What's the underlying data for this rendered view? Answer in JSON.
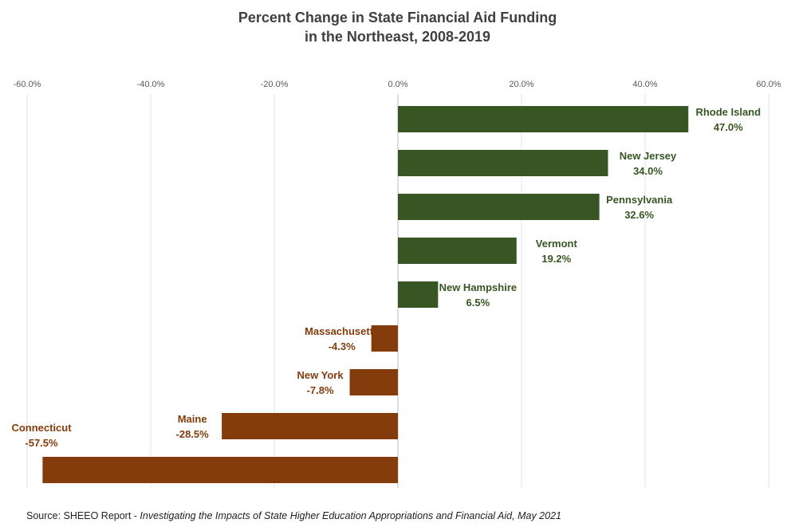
{
  "colors": {
    "positive": "#375623",
    "negative": "#843C0C",
    "grid": "#e6e6e6",
    "axis": "#bfbfbf"
  },
  "chart_data": {
    "type": "bar",
    "orientation": "horizontal",
    "title": "Percent Change in State Financial Aid Funding",
    "subtitle": "in the Northeast, 2008-2019",
    "xlim": [
      -60,
      60
    ],
    "x_ticks": [
      "-60.0%",
      "-40.0%",
      "-20.0%",
      "0.0%",
      "20.0%",
      "40.0%",
      "60.0%"
    ],
    "axis_position": "top",
    "grid": true,
    "categories": [
      "Rhode Island",
      "New Jersey",
      "Pennsylvania",
      "Vermont",
      "New Hampshire",
      "Massachusetts",
      "New York",
      "Maine",
      "Connecticut"
    ],
    "values": [
      47.0,
      34.0,
      32.6,
      19.2,
      6.5,
      -4.3,
      -7.8,
      -28.5,
      -57.5
    ],
    "value_labels": [
      "47.0%",
      "34.0%",
      "32.6%",
      "19.2%",
      "6.5%",
      "-4.3%",
      "-7.8%",
      "-28.5%",
      "-57.5%"
    ]
  },
  "source": {
    "prefix": "Source: SHEEO Report - ",
    "italic": "Investigating the Impacts of State Higher Education Appropriations and Financial Aid, May 2021"
  }
}
